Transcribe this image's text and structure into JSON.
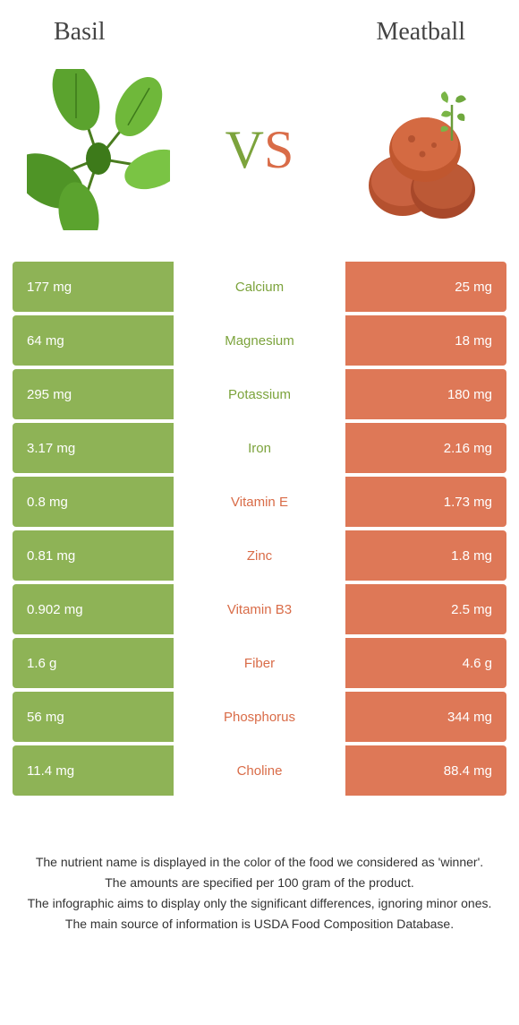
{
  "header": {
    "left_title": "Basil",
    "right_title": "Meatball"
  },
  "vs": {
    "v": "V",
    "s": "S"
  },
  "colors": {
    "green": "#8eb356",
    "orange": "#de7857",
    "green_text": "#7ca33c",
    "orange_text": "#d96c48"
  },
  "rows": [
    {
      "nutrient": "Calcium",
      "left": "177 mg",
      "right": "25 mg",
      "winner": "left"
    },
    {
      "nutrient": "Magnesium",
      "left": "64 mg",
      "right": "18 mg",
      "winner": "left"
    },
    {
      "nutrient": "Potassium",
      "left": "295 mg",
      "right": "180 mg",
      "winner": "left"
    },
    {
      "nutrient": "Iron",
      "left": "3.17 mg",
      "right": "2.16 mg",
      "winner": "left"
    },
    {
      "nutrient": "Vitamin E",
      "left": "0.8 mg",
      "right": "1.73 mg",
      "winner": "right"
    },
    {
      "nutrient": "Zinc",
      "left": "0.81 mg",
      "right": "1.8 mg",
      "winner": "right"
    },
    {
      "nutrient": "Vitamin B3",
      "left": "0.902 mg",
      "right": "2.5 mg",
      "winner": "right"
    },
    {
      "nutrient": "Fiber",
      "left": "1.6 g",
      "right": "4.6 g",
      "winner": "right"
    },
    {
      "nutrient": "Phosphorus",
      "left": "56 mg",
      "right": "344 mg",
      "winner": "right"
    },
    {
      "nutrient": "Choline",
      "left": "11.4 mg",
      "right": "88.4 mg",
      "winner": "right"
    }
  ],
  "footer": {
    "line1": "The nutrient name is displayed in the color of the food we considered as 'winner'.",
    "line2": "The amounts are specified per 100 gram of the product.",
    "line3": "The infographic aims to display only the significant differences, ignoring minor ones.",
    "line4": "The main source of information is USDA Food Composition Database."
  }
}
